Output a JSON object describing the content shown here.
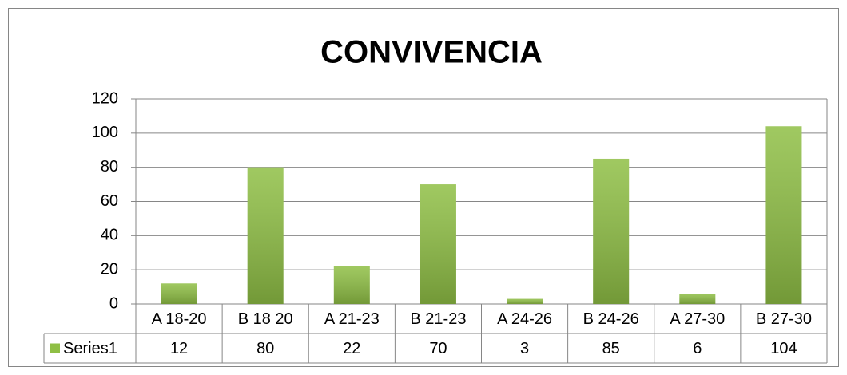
{
  "chart_data": {
    "type": "bar",
    "title": "CONVIVENCIA",
    "categories": [
      "A 18-20",
      "B 18 20",
      "A 21-23",
      "B 21-23",
      "A 24-26",
      "B 24-26",
      "A 27-30",
      "B 27-30"
    ],
    "series": [
      {
        "name": "Series1",
        "color": "#8fbf45",
        "values": [
          12,
          80,
          22,
          70,
          3,
          85,
          6,
          104
        ]
      }
    ],
    "ylim": [
      0,
      120
    ],
    "yticks": [
      0,
      20,
      40,
      60,
      80,
      100,
      120
    ],
    "grid": true
  }
}
